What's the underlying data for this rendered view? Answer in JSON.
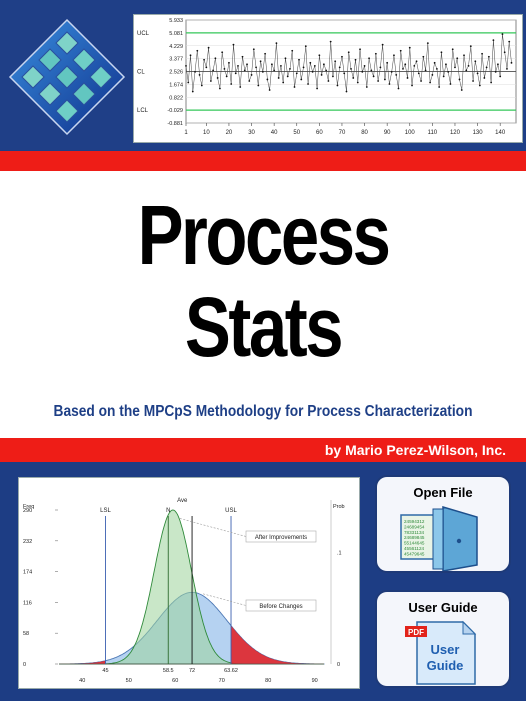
{
  "title_line1": "Process",
  "title_line2": "Stats",
  "subtitle": "Based on the MPCpS Methodology for Process Characterization",
  "author": "by Mario Perez-Wilson, Inc.",
  "buttons": {
    "open_file": "Open File",
    "user_guide": "User Guide"
  },
  "user_guide_icon": {
    "badge": "PDF",
    "line1": "User",
    "line2": "Guide"
  },
  "open_file_icon": {
    "lines": [
      "24594312",
      "24689454",
      "78331134",
      "24689845",
      "55144645",
      "45561124",
      "45479645"
    ]
  },
  "colors": {
    "navy": "#1f3f87",
    "red": "#ee1d17",
    "subtitle": "#1e3f86",
    "green_limit": "#34c759"
  },
  "chart_data": [
    {
      "type": "line",
      "control_labels": {
        "ucl": "UCL",
        "cl": "CL",
        "lcl": "LCL"
      },
      "y_ticks": [
        "5.933",
        "5.081",
        "4.229",
        "3.377",
        "2.526",
        "1.674",
        "0.822",
        "-0.029",
        "-0.881"
      ],
      "x_ticks": [
        1,
        10,
        20,
        30,
        40,
        50,
        60,
        70,
        80,
        90,
        100,
        110,
        120,
        130,
        140
      ],
      "ylim": [
        -0.881,
        5.933
      ],
      "xlim": [
        1,
        147
      ],
      "limits": {
        "ucl": 5.081,
        "cl": 2.526,
        "lcl": -0.029
      },
      "values": [
        2.9,
        1.8,
        3.6,
        1.2,
        2.5,
        3.9,
        2.3,
        1.6,
        3.3,
        2.8,
        4.1,
        1.9,
        2.6,
        3.4,
        2.1,
        1.4,
        3.8,
        2.7,
        2.2,
        3.1,
        1.7,
        4.3,
        2.4,
        2.9,
        1.5,
        3.5,
        2.6,
        3.0,
        1.9,
        2.3,
        4.0,
        2.8,
        1.6,
        3.2,
        2.5,
        3.7,
        2.0,
        1.3,
        3.0,
        2.6,
        4.4,
        2.1,
        2.9,
        1.8,
        3.4,
        2.2,
        2.7,
        3.9,
        1.5,
        2.4,
        3.3,
        2.0,
        2.8,
        4.2,
        1.7,
        3.1,
        2.5,
        2.9,
        1.4,
        3.6,
        2.3,
        3.0,
        2.6,
        1.9,
        4.5,
        2.2,
        3.2,
        1.6,
        2.8,
        3.5,
        2.4,
        1.2,
        3.8,
        2.7,
        2.1,
        3.3,
        1.8,
        4.0,
        2.5,
        2.9,
        1.5,
        3.4,
        2.6,
        2.2,
        3.7,
        1.9,
        2.8,
        4.3,
        2.0,
        3.1,
        1.7,
        2.5,
        3.6,
        2.3,
        1.4,
        3.9,
        2.7,
        3.0,
        2.1,
        4.1,
        1.6,
        2.9,
        3.2,
        2.4,
        1.9,
        3.5,
        2.6,
        4.4,
        1.8,
        2.3,
        3.1,
        2.7,
        1.5,
        3.8,
        2.2,
        3.0,
        2.5,
        1.7,
        4.0,
        2.8,
        3.4,
        2.0,
        1.3,
        3.6,
        2.6,
        2.9,
        4.2,
        1.9,
        3.2,
        2.4,
        1.6,
        3.7,
        2.1,
        2.8,
        3.5,
        1.8,
        4.6,
        2.5,
        3.0,
        2.2,
        5.0,
        3.8,
        2.7,
        4.5,
        3.1
      ],
      "series_color": "#444444"
    },
    {
      "type": "area",
      "left_axis_label": "Freq",
      "right_axis_label": "Prob",
      "y_ticks": [
        "290",
        "232",
        "174",
        "116",
        "58",
        "0"
      ],
      "y_right_ticks": [
        ".1",
        "0"
      ],
      "x_ticks": [
        40,
        50,
        60,
        70,
        80,
        90
      ],
      "xlim": [
        35,
        92
      ],
      "lines": [
        {
          "label": "LSL",
          "x": 45
        },
        {
          "label": "N",
          "x": 58.5
        },
        {
          "label": "USL",
          "x": 72
        },
        {
          "label": "",
          "x": 63.62
        }
      ],
      "top_label": "Ave",
      "value_labels": [
        "45",
        "58.5",
        "63.62",
        "72"
      ],
      "series": [
        {
          "name": "After Improvements",
          "mean": 59.5,
          "sd": 4.0,
          "peak": 290,
          "color": "#9dd49a"
        },
        {
          "name": "Before Changes",
          "mean": 63.62,
          "sd": 7.5,
          "peak": 135,
          "color": "#9cc3ec"
        }
      ],
      "tail_color": "#e0252a"
    }
  ]
}
